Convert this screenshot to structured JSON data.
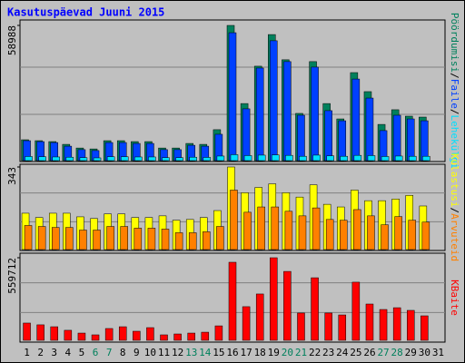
{
  "chart_data": {
    "type": "bar",
    "title": "Kasutuspäevad Juuni 2015",
    "separator": "/",
    "categories": [
      "1",
      "2",
      "3",
      "4",
      "5",
      "6",
      "7",
      "8",
      "9",
      "10",
      "11",
      "12",
      "13",
      "14",
      "15",
      "16",
      "17",
      "18",
      "19",
      "20",
      "21",
      "22",
      "23",
      "24",
      "25",
      "26",
      "27",
      "28",
      "29",
      "30",
      "31"
    ],
    "category_colors": [
      "#000000",
      "#000000",
      "#000000",
      "#000000",
      "#000000",
      "#00805c",
      "#00805c",
      "#000000",
      "#000000",
      "#000000",
      "#000000",
      "#000000",
      "#00805c",
      "#00805c",
      "#000000",
      "#000000",
      "#000000",
      "#000000",
      "#000000",
      "#00805c",
      "#00805c",
      "#000000",
      "#000000",
      "#000000",
      "#000000",
      "#000000",
      "#00805c",
      "#00805c",
      "#000000",
      "#000000",
      "#000000"
    ],
    "panels": [
      {
        "ylim": [
          0,
          58988
        ],
        "yticks": [
          58988
        ],
        "series": [
          {
            "name": "Pöördumisi",
            "color": "#00805c",
            "values": [
              9100,
              8700,
              8300,
              7100,
              5500,
              5100,
              8700,
              8700,
              8300,
              8300,
              5500,
              5500,
              7500,
              7100,
              13500,
              58988,
              24900,
              41200,
              55000,
              44000,
              20600,
              43200,
              24900,
              18200,
              38400,
              30100,
              15800,
              22200,
              19400,
              19000,
              null
            ]
          },
          {
            "name": "Faile",
            "color": "#0040ff",
            "values": [
              8700,
              8300,
              7900,
              6300,
              4800,
              4400,
              7900,
              7900,
              7500,
              7500,
              4800,
              4800,
              6700,
              6300,
              11500,
              55800,
              22600,
              40400,
              52300,
              43200,
              19800,
              40800,
              21800,
              17400,
              35600,
              27300,
              13100,
              19800,
              18200,
              17400,
              null
            ]
          },
          {
            "name": "Lehekülgi",
            "color": "#00e0ff",
            "values": [
              1800,
              1700,
              1600,
              1500,
              1300,
              1200,
              1700,
              1700,
              1600,
              1600,
              1300,
              1300,
              1500,
              1400,
              2000,
              2600,
              2200,
              2400,
              2500,
              2300,
              1900,
              2400,
              2100,
              1900,
              2300,
              2200,
              1800,
              2000,
              1900,
              1900,
              null
            ]
          }
        ]
      },
      {
        "ylim": [
          0,
          343
        ],
        "yticks": [
          343
        ],
        "series": [
          {
            "name": "Külastusi",
            "color": "#ffff00",
            "values": [
              151,
              133,
              151,
              151,
              136,
              129,
              148,
              148,
              133,
              133,
              140,
              122,
              125,
              133,
              162,
              343,
              236,
              258,
              273,
              236,
              218,
              269,
              188,
              177,
              247,
              203,
              203,
              210,
              225,
              181,
              null
            ]
          },
          {
            "name": "Arvuteid",
            "color": "#ff8000",
            "values": [
              100,
              96,
              92,
              92,
              81,
              81,
              96,
              96,
              89,
              89,
              85,
              70,
              70,
              74,
              96,
              247,
              155,
              177,
              177,
              159,
              140,
              173,
              125,
              122,
              166,
              140,
              103,
              137,
              122,
              114,
              null
            ]
          }
        ]
      },
      {
        "ylim": [
          0,
          559712
        ],
        "yticks": [
          559712
        ],
        "series": [
          {
            "name": "KBaite",
            "color": "#ff0000",
            "values": [
              117000,
              105000,
              92000,
              68000,
              49000,
              37000,
              80000,
              92000,
              61500,
              86000,
              37000,
              43000,
              49000,
              55000,
              98000,
              529000,
              228000,
              314000,
              559712,
              467000,
              185000,
              424000,
              185000,
              172000,
              394000,
              246000,
              209000,
              221000,
              203000,
              166000,
              null
            ]
          }
        ]
      }
    ]
  }
}
